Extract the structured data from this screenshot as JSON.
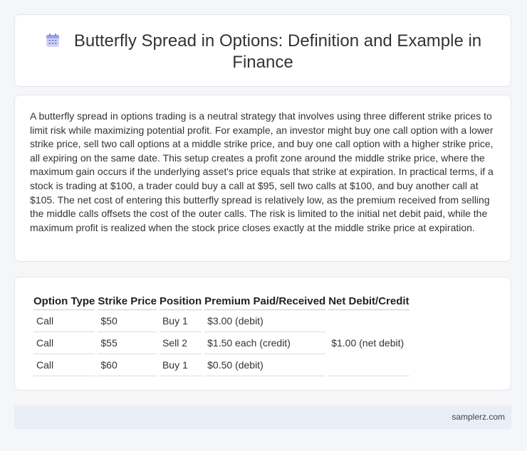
{
  "header": {
    "title": "Butterfly Spread in Options: Definition and Example in Finance",
    "icon": "calendar-icon"
  },
  "description": "A butterfly spread in options trading is a neutral strategy that involves using three different strike prices to limit risk while maximizing potential profit. For example, an investor might buy one call option with a lower strike price, sell two call options at a middle strike price, and buy one call option with a higher strike price, all expiring on the same date. This setup creates a profit zone around the middle strike price, where the maximum gain occurs if the underlying asset's price equals that strike at expiration. In practical terms, if a stock is trading at $100, a trader could buy a call at $95, sell two calls at $100, and buy another call at $105. The net cost of entering this butterfly spread is relatively low, as the premium received from selling the middle calls offsets the cost of the outer calls. The risk is limited to the initial net debit paid, while the maximum profit is realized when the stock price closes exactly at the middle strike price at expiration.",
  "table": {
    "headers": [
      "Option Type",
      "Strike Price",
      "Position",
      "Premium Paid/Received",
      "Net Debit/Credit"
    ],
    "rows": [
      [
        "Call",
        "$50",
        "Buy 1",
        "$3.00 (debit)"
      ],
      [
        "Call",
        "$55",
        "Sell 2",
        "$1.50 each (credit)"
      ],
      [
        "Call",
        "$60",
        "Buy 1",
        "$0.50 (debit)"
      ]
    ],
    "net": "$1.00 (net debit)"
  },
  "footer": {
    "brand": "samplerz.com"
  }
}
